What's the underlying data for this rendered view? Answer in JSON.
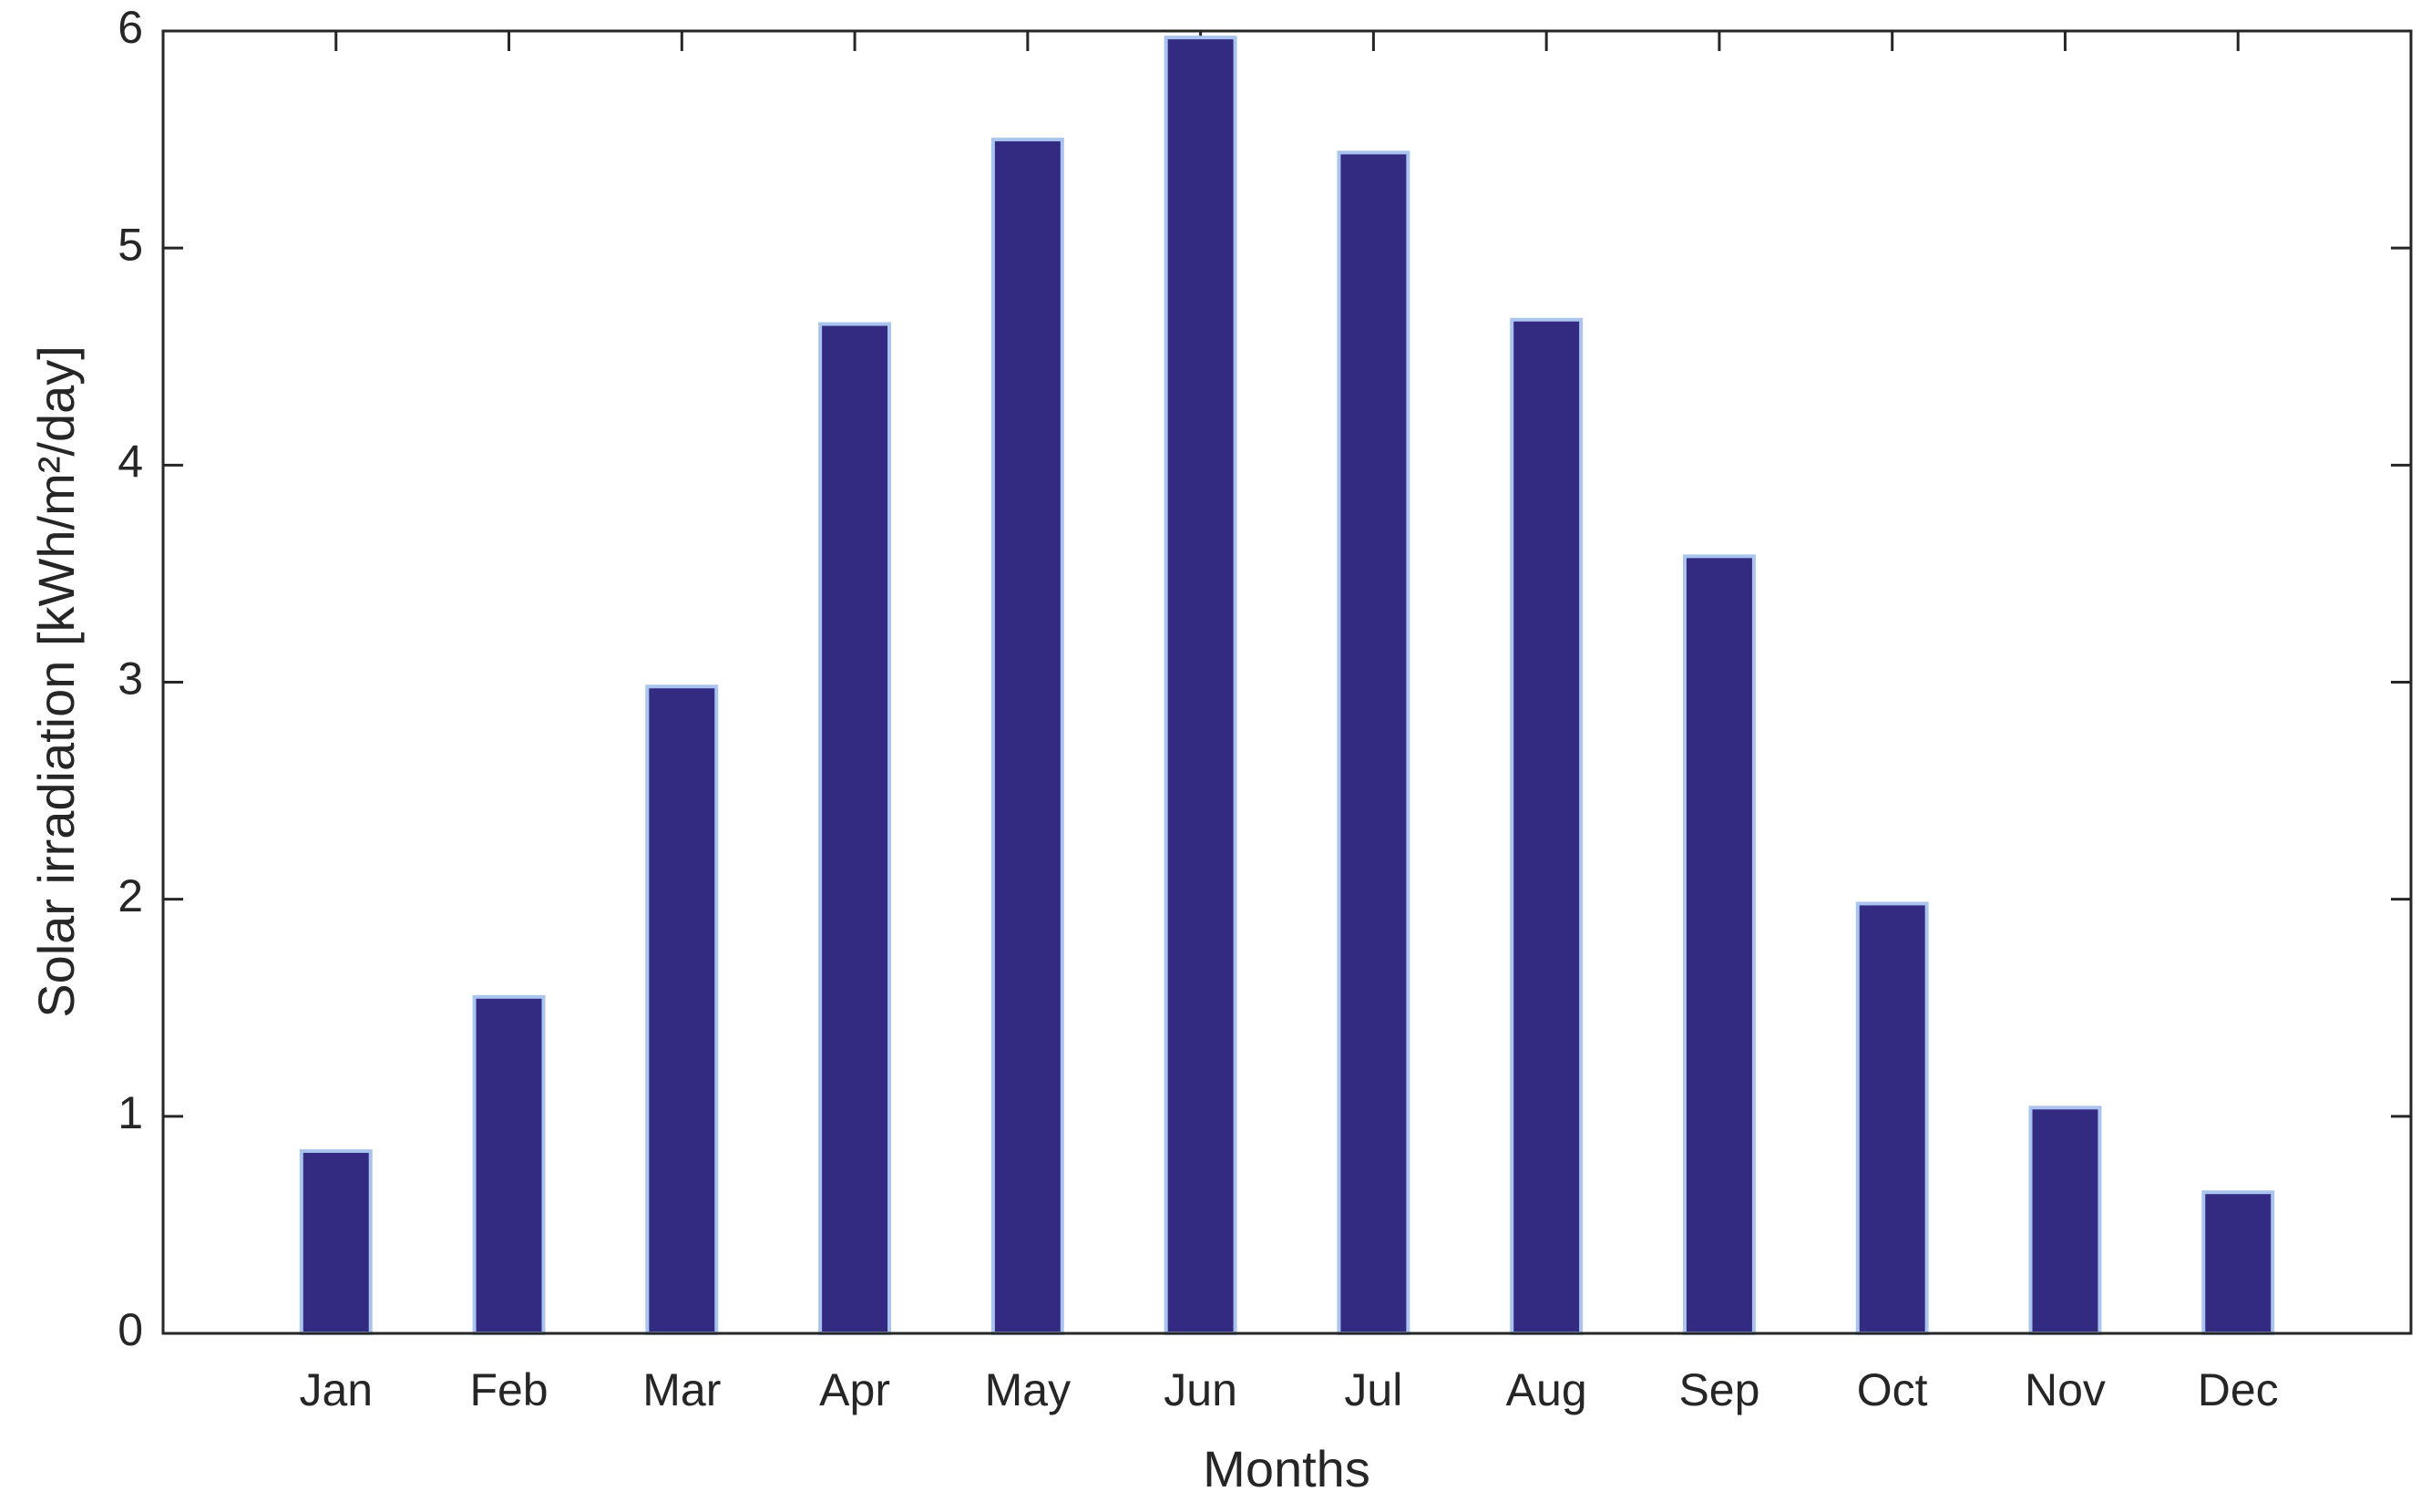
{
  "chart_data": {
    "type": "bar",
    "categories": [
      "Jan",
      "Feb",
      "Mar",
      "Apr",
      "May",
      "Jun",
      "Jul",
      "Aug",
      "Sep",
      "Oct",
      "Nov",
      "Dec"
    ],
    "values": [
      0.84,
      1.55,
      2.98,
      4.65,
      5.5,
      5.97,
      5.44,
      4.67,
      3.58,
      1.98,
      1.04,
      0.65
    ],
    "color": "#332a82",
    "edge_color": "#a9c4ee",
    "xlabel": "Months",
    "ylabel": "Solar irradiation [kWh/m²/day]",
    "ylim": [
      0,
      6
    ],
    "yticks": [
      0,
      1,
      2,
      3,
      4,
      5,
      6
    ],
    "grid": false
  }
}
